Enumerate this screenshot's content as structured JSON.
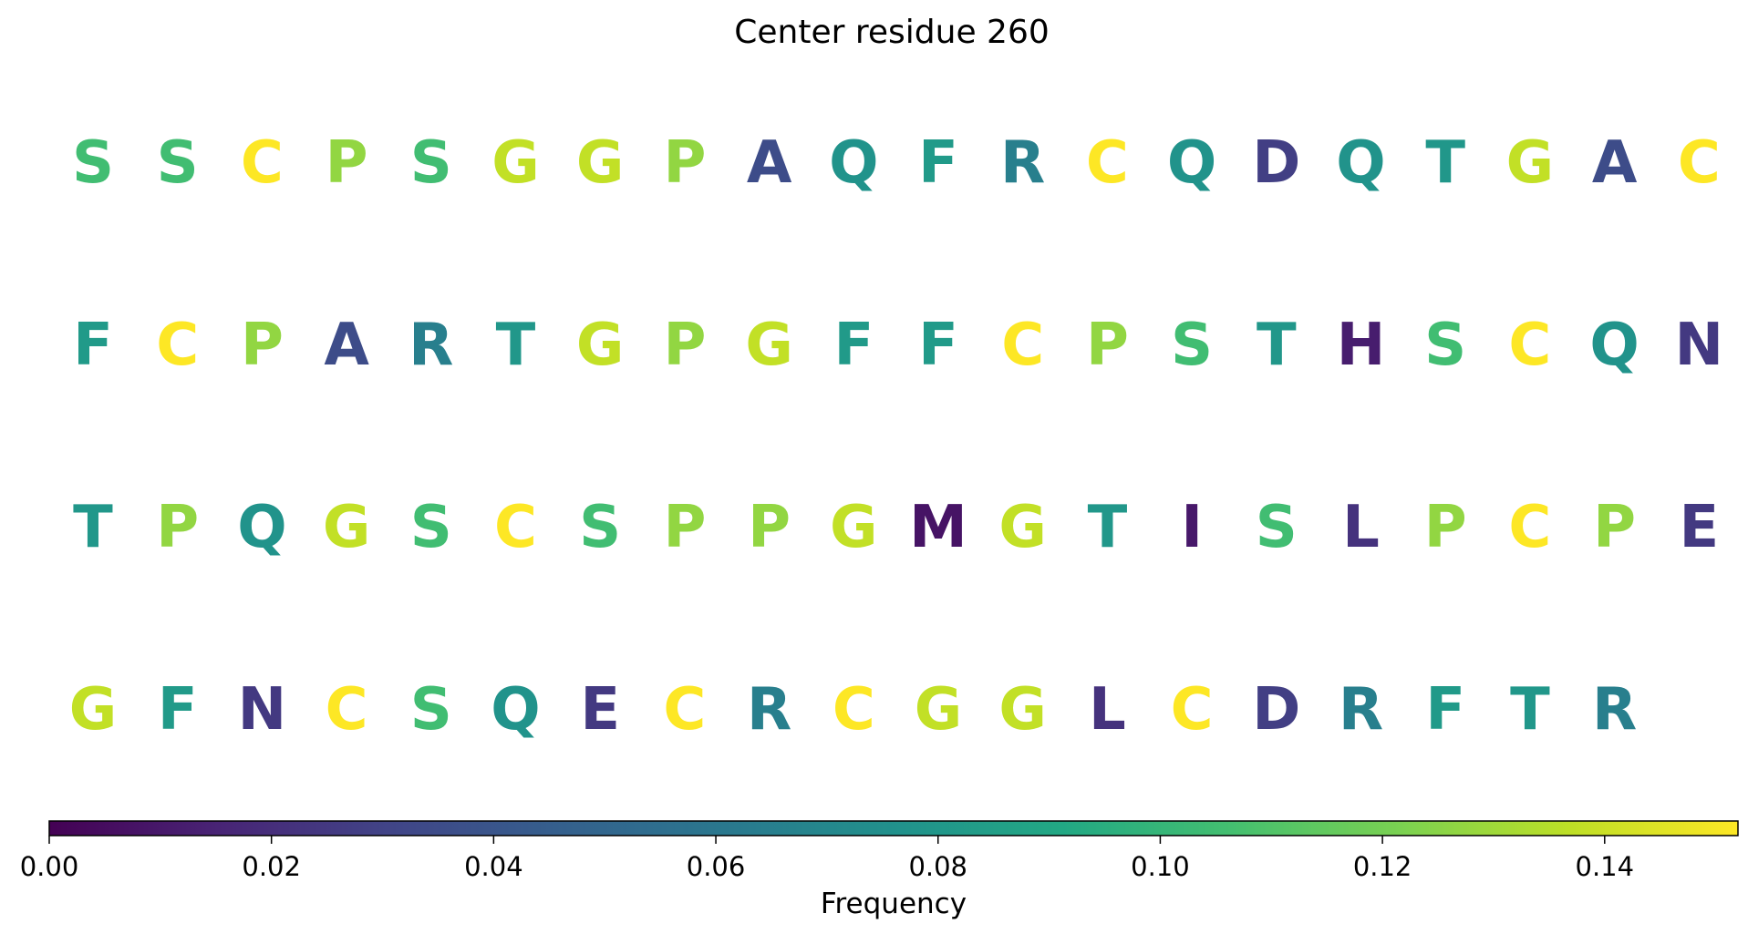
{
  "chart_data": {
    "type": "heatmap",
    "title": "Center residue 260",
    "colormap": "viridis",
    "columns": 20,
    "rows": [
      {
        "residues": [
          "S",
          "S",
          "C",
          "P",
          "S",
          "G",
          "G",
          "P",
          "A",
          "Q",
          "F",
          "R",
          "C",
          "Q",
          "D",
          "Q",
          "T",
          "G",
          "A",
          "C"
        ],
        "values": [
          0.105,
          0.105,
          0.152,
          0.127,
          0.105,
          0.138,
          0.138,
          0.127,
          0.035,
          0.077,
          0.082,
          0.065,
          0.152,
          0.077,
          0.028,
          0.077,
          0.08,
          0.138,
          0.035,
          0.152
        ]
      },
      {
        "residues": [
          "F",
          "C",
          "P",
          "A",
          "R",
          "T",
          "G",
          "P",
          "G",
          "F",
          "F",
          "C",
          "P",
          "S",
          "T",
          "H",
          "S",
          "C",
          "Q",
          "N"
        ],
        "values": [
          0.082,
          0.152,
          0.127,
          0.035,
          0.065,
          0.08,
          0.138,
          0.127,
          0.138,
          0.082,
          0.082,
          0.152,
          0.127,
          0.105,
          0.08,
          0.012,
          0.105,
          0.152,
          0.077,
          0.025
        ]
      },
      {
        "residues": [
          "T",
          "P",
          "Q",
          "G",
          "S",
          "C",
          "S",
          "P",
          "P",
          "G",
          "M",
          "G",
          "T",
          "I",
          "S",
          "L",
          "P",
          "C",
          "P",
          "E"
        ],
        "values": [
          0.08,
          0.127,
          0.077,
          0.138,
          0.105,
          0.152,
          0.105,
          0.127,
          0.127,
          0.138,
          0.008,
          0.138,
          0.08,
          0.01,
          0.105,
          0.022,
          0.127,
          0.152,
          0.127,
          0.025
        ]
      },
      {
        "residues": [
          "G",
          "F",
          "N",
          "C",
          "S",
          "Q",
          "E",
          "C",
          "R",
          "C",
          "G",
          "G",
          "L",
          "C",
          "D",
          "R",
          "F",
          "T",
          "R"
        ],
        "values": [
          0.138,
          0.082,
          0.025,
          0.152,
          0.105,
          0.077,
          0.025,
          0.152,
          0.065,
          0.152,
          0.138,
          0.138,
          0.022,
          0.152,
          0.028,
          0.065,
          0.082,
          0.08,
          0.065
        ]
      }
    ],
    "colorbar": {
      "label": "Frequency",
      "range": [
        0,
        0.152
      ],
      "ticks": [
        0,
        0.02,
        0.04,
        0.06,
        0.08,
        0.1,
        0.12,
        0.14
      ],
      "tick_labels": [
        "0.00",
        "0.02",
        "0.04",
        "0.06",
        "0.08",
        "0.10",
        "0.12",
        "0.14"
      ],
      "orientation": "horizontal"
    }
  }
}
